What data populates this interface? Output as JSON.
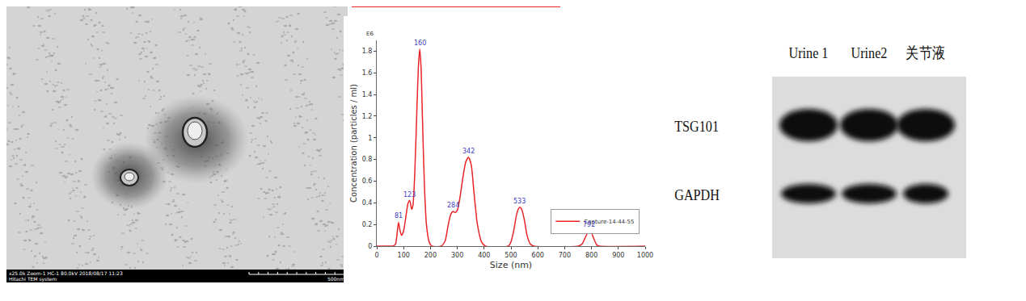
{
  "chart_data": {
    "type": "line",
    "y_unit_label": "E6",
    "x_label": "Size (nm)",
    "y_label": "Concentration (particles / ml)",
    "x": [
      0,
      50,
      60,
      70,
      75,
      81,
      87,
      92,
      100,
      110,
      117,
      123,
      130,
      135,
      142,
      150,
      155,
      160,
      165,
      170,
      177,
      185,
      195,
      205,
      240,
      255,
      265,
      275,
      284,
      292,
      300,
      310,
      320,
      332,
      342,
      352,
      362,
      375,
      390,
      405,
      490,
      500,
      510,
      520,
      527,
      533,
      540,
      550,
      560,
      572,
      585,
      750,
      765,
      775,
      785,
      792,
      800,
      810,
      820,
      830,
      1000
    ],
    "series": [
      {
        "name": "Capture-14-44-55",
        "color": "#e8262a",
        "values": [
          0,
          0,
          0,
          0.02,
          0.1,
          0.22,
          0.14,
          0.1,
          0.14,
          0.3,
          0.4,
          0.42,
          0.34,
          0.38,
          0.7,
          1.3,
          1.65,
          1.82,
          1.65,
          1.2,
          0.6,
          0.2,
          0.04,
          0,
          0,
          0.05,
          0.18,
          0.29,
          0.32,
          0.31,
          0.33,
          0.45,
          0.62,
          0.78,
          0.82,
          0.75,
          0.5,
          0.2,
          0.04,
          0,
          0,
          0.04,
          0.14,
          0.28,
          0.34,
          0.36,
          0.34,
          0.24,
          0.1,
          0.02,
          0,
          0,
          0.02,
          0.07,
          0.12,
          0.14,
          0.12,
          0.06,
          0.01,
          0,
          0
        ]
      }
    ],
    "peaks": [
      {
        "x": 81,
        "y": 0.22
      },
      {
        "x": 123,
        "y": 0.42
      },
      {
        "x": 160,
        "y": 1.82
      },
      {
        "x": 284,
        "y": 0.32
      },
      {
        "x": 342,
        "y": 0.82
      },
      {
        "x": 533,
        "y": 0.36
      },
      {
        "x": 792,
        "y": 0.14
      }
    ],
    "xlim": [
      0,
      1000
    ],
    "xticks": [
      0,
      100,
      200,
      300,
      400,
      500,
      600,
      700,
      800,
      900,
      1000
    ],
    "ylim": [
      0,
      1.9
    ],
    "yticks": [
      0,
      0.2,
      0.4,
      0.6,
      0.8,
      1,
      1.2,
      1.4,
      1.6,
      1.8
    ],
    "grid": false,
    "legend": "lower right"
  },
  "tem_image": {
    "caption": "x25.0k Zoom-1 HC-1 80.0kV 2018/08/17 11:23",
    "system": "Hitachi TEM system",
    "scale_bar": "500nm"
  },
  "western_blot": {
    "lanes": [
      "Urine 1",
      "Urine2",
      "关节液"
    ],
    "rows": [
      "TSG101",
      "GAPDH"
    ]
  }
}
